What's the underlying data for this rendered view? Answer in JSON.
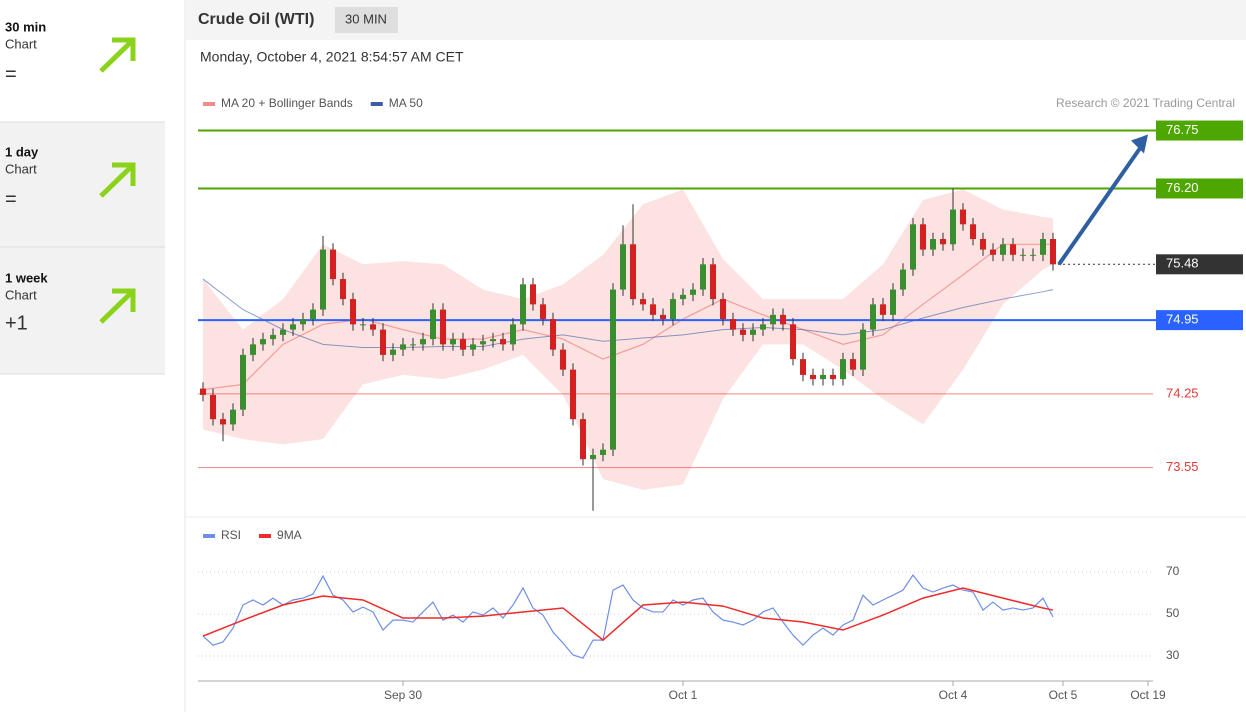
{
  "sidebar": [
    {
      "period": "30 min",
      "label": "Chart",
      "signal": "="
    },
    {
      "period": "1 day",
      "label": "Chart",
      "signal": "="
    },
    {
      "period": "1 week",
      "label": "Chart",
      "signal": "+1"
    }
  ],
  "header": {
    "title": "Crude Oil (WTI)",
    "interval": "30 MIN",
    "timestamp": "Monday, October 4, 2021 8:54:57 AM CET"
  },
  "chart_data": [
    {
      "type": "candlestick",
      "credit": "Research © 2021 Trading Central",
      "up_color": "#3b8e2f",
      "down_color": "#d32020",
      "xlim": [
        -0.5,
        95
      ],
      "ylim": [
        73.1,
        76.85
      ],
      "x": [
        0,
        1,
        2,
        3,
        4,
        5,
        6,
        7,
        8,
        9,
        10,
        11,
        12,
        13,
        14,
        15,
        16,
        17,
        18,
        19,
        20,
        21,
        22,
        23,
        24,
        25,
        26,
        27,
        28,
        29,
        30,
        31,
        32,
        33,
        34,
        35,
        36,
        37,
        38,
        39,
        40,
        41,
        42,
        43,
        44,
        45,
        46,
        47,
        48,
        49,
        50,
        51,
        52,
        53,
        54,
        55,
        56,
        57,
        58,
        59,
        60,
        61,
        62,
        63,
        64,
        65,
        66,
        67,
        68,
        69,
        70,
        71,
        72,
        73,
        74,
        75,
        76,
        77,
        78,
        79,
        80,
        81,
        82,
        83,
        84,
        85
      ],
      "open": [
        74.3,
        74.24,
        74.01,
        73.96,
        74.1,
        74.62,
        74.72,
        74.77,
        74.81,
        74.86,
        74.91,
        74.96,
        75.05,
        75.62,
        75.34,
        75.15,
        74.91,
        74.91,
        74.86,
        74.62,
        74.67,
        74.72,
        74.72,
        74.77,
        75.05,
        74.72,
        74.77,
        74.67,
        74.72,
        74.75,
        74.77,
        74.72,
        74.91,
        75.29,
        75.1,
        74.96,
        74.67,
        74.48,
        74.01,
        73.63,
        73.67,
        73.72,
        75.24,
        75.67,
        75.15,
        75.1,
        75.0,
        74.96,
        75.15,
        75.19,
        75.24,
        75.48,
        75.15,
        74.96,
        74.86,
        74.81,
        74.86,
        74.91,
        75.0,
        74.91,
        74.58,
        74.43,
        74.39,
        74.43,
        74.39,
        74.58,
        74.48,
        74.86,
        75.1,
        75.0,
        75.24,
        75.43,
        75.86,
        75.62,
        75.72,
        75.67,
        76.0,
        75.86,
        75.72,
        75.62,
        75.57,
        75.67,
        75.57,
        75.57,
        75.57,
        75.72
      ],
      "high": [
        74.36,
        74.3,
        74.07,
        74.16,
        74.68,
        74.78,
        74.83,
        74.87,
        74.92,
        74.97,
        75.02,
        75.11,
        75.75,
        75.68,
        75.4,
        75.21,
        74.97,
        74.97,
        74.92,
        74.73,
        74.78,
        74.78,
        74.83,
        75.11,
        75.11,
        74.83,
        74.83,
        74.78,
        74.81,
        74.83,
        74.83,
        74.97,
        75.35,
        75.35,
        75.16,
        75.02,
        74.73,
        74.54,
        74.07,
        73.73,
        73.78,
        75.3,
        75.85,
        76.05,
        75.21,
        75.16,
        75.06,
        75.21,
        75.25,
        75.3,
        75.54,
        75.54,
        75.21,
        75.02,
        74.92,
        74.92,
        74.97,
        75.06,
        75.06,
        74.97,
        74.64,
        74.49,
        74.49,
        74.49,
        74.64,
        74.64,
        74.92,
        75.16,
        75.16,
        75.3,
        75.49,
        75.92,
        75.92,
        75.78,
        75.78,
        76.2,
        76.06,
        75.92,
        75.78,
        75.68,
        75.73,
        75.73,
        75.63,
        75.63,
        75.78,
        75.78
      ],
      "low": [
        74.18,
        73.95,
        73.8,
        73.9,
        74.04,
        74.56,
        74.66,
        74.71,
        74.75,
        74.8,
        74.85,
        74.9,
        74.99,
        75.28,
        75.09,
        74.85,
        74.85,
        74.8,
        74.56,
        74.56,
        74.61,
        74.66,
        74.66,
        74.71,
        74.66,
        74.66,
        74.61,
        74.61,
        74.66,
        74.69,
        74.66,
        74.66,
        74.85,
        75.04,
        74.9,
        74.61,
        74.42,
        73.95,
        73.57,
        73.14,
        73.61,
        73.66,
        75.18,
        75.09,
        75.04,
        74.94,
        74.9,
        74.9,
        75.09,
        75.13,
        75.18,
        75.09,
        74.9,
        74.8,
        74.75,
        74.75,
        74.8,
        74.85,
        74.85,
        74.52,
        74.37,
        74.33,
        74.33,
        74.33,
        74.33,
        74.42,
        74.42,
        74.8,
        74.94,
        74.94,
        75.18,
        75.37,
        75.56,
        75.56,
        75.61,
        75.61,
        75.8,
        75.66,
        75.56,
        75.51,
        75.51,
        75.51,
        75.51,
        75.51,
        75.51,
        75.42
      ],
      "close": [
        74.24,
        74.01,
        73.96,
        74.1,
        74.62,
        74.72,
        74.77,
        74.81,
        74.86,
        74.91,
        74.96,
        75.05,
        75.62,
        75.34,
        75.15,
        74.91,
        74.91,
        74.86,
        74.62,
        74.67,
        74.72,
        74.72,
        74.77,
        75.05,
        74.72,
        74.77,
        74.67,
        74.72,
        74.75,
        74.77,
        74.72,
        74.91,
        75.29,
        75.1,
        74.96,
        74.67,
        74.48,
        74.01,
        73.63,
        73.67,
        73.72,
        75.24,
        75.67,
        75.15,
        75.1,
        75.0,
        74.96,
        75.15,
        75.19,
        75.24,
        75.48,
        75.15,
        74.96,
        74.86,
        74.81,
        74.86,
        74.91,
        75.0,
        74.91,
        74.58,
        74.43,
        74.39,
        74.43,
        74.39,
        74.58,
        74.48,
        74.86,
        75.1,
        75.0,
        75.24,
        75.43,
        75.86,
        75.62,
        75.72,
        75.67,
        76.0,
        75.86,
        75.72,
        75.62,
        75.57,
        75.67,
        75.57,
        75.57,
        75.57,
        75.72,
        75.48
      ],
      "series": [
        {
          "name": "MA 20 + Bollinger Bands",
          "color": "#f28b8b",
          "band_color": "#fde2e2",
          "x": [
            0,
            4,
            8,
            12,
            16,
            20,
            24,
            28,
            32,
            36,
            40,
            44,
            48,
            52,
            56,
            60,
            64,
            68,
            72,
            76,
            80,
            84,
            85
          ],
          "values": [
            74.29,
            74.34,
            74.72,
            74.91,
            74.96,
            74.86,
            74.77,
            74.77,
            74.86,
            74.77,
            74.58,
            74.72,
            74.96,
            75.15,
            75.0,
            74.86,
            74.72,
            74.81,
            75.1,
            75.38,
            75.67,
            75.67,
            75.67
          ],
          "upper": [
            75.34,
            74.86,
            75.15,
            75.67,
            75.48,
            75.51,
            75.48,
            75.24,
            75.15,
            75.29,
            75.57,
            76.05,
            76.19,
            75.53,
            75.15,
            75.15,
            75.15,
            75.48,
            76.09,
            76.19,
            76.0,
            75.93,
            75.92
          ],
          "lower": [
            73.91,
            73.82,
            73.77,
            73.82,
            74.34,
            74.43,
            74.39,
            74.48,
            74.62,
            74.24,
            73.44,
            73.34,
            73.39,
            74.2,
            74.72,
            74.72,
            74.48,
            74.2,
            73.96,
            74.48,
            75.1,
            75.43,
            75.48
          ]
        },
        {
          "name": "MA 50",
          "color": "#3d5ba9",
          "x": [
            0,
            4,
            8,
            12,
            16,
            20,
            24,
            28,
            32,
            36,
            40,
            44,
            48,
            52,
            56,
            60,
            64,
            68,
            72,
            76,
            80,
            84,
            85
          ],
          "values": [
            75.34,
            75.05,
            74.86,
            74.72,
            74.69,
            74.69,
            74.7,
            74.7,
            74.77,
            74.81,
            74.75,
            74.78,
            74.81,
            74.86,
            74.88,
            74.86,
            74.81,
            74.86,
            74.97,
            75.07,
            75.15,
            75.22,
            75.24
          ]
        }
      ],
      "levels": [
        {
          "value": 76.75,
          "label": "76.75",
          "color": "#4ea600",
          "boxed": true,
          "style": "solid"
        },
        {
          "value": 76.2,
          "label": "76.20",
          "color": "#4ea600",
          "boxed": true,
          "style": "solid"
        },
        {
          "value": 75.48,
          "label": "75.48",
          "color": "#333333",
          "boxed": true,
          "style": "dotted"
        },
        {
          "value": 74.95,
          "label": "74.95",
          "color": "#2962ff",
          "boxed": true,
          "style": "solid"
        },
        {
          "value": 74.25,
          "label": "74.25",
          "color": "#e53935",
          "boxed": false,
          "style": "thin"
        },
        {
          "value": 73.55,
          "label": "73.55",
          "color": "#e53935",
          "boxed": false,
          "style": "thin"
        }
      ]
    },
    {
      "type": "line",
      "xlim": [
        -0.5,
        95
      ],
      "ylim": [
        18.6,
        80.5
      ],
      "yticks": [
        30,
        50,
        70
      ],
      "grid": true,
      "xticks": [
        {
          "value": 20,
          "label": "Sep 30"
        },
        {
          "value": 48,
          "label": "Oct 1"
        },
        {
          "value": 75,
          "label": "Oct 4"
        },
        {
          "value": 86,
          "label": "Oct 5"
        },
        {
          "value": 94.5,
          "label": "Oct 19"
        }
      ],
      "series": [
        {
          "name": "RSI",
          "color": "#6f8fe6",
          "x": [
            0,
            1,
            2,
            3,
            4,
            5,
            6,
            7,
            8,
            9,
            10,
            11,
            12,
            13,
            14,
            15,
            16,
            17,
            18,
            19,
            20,
            21,
            22,
            23,
            24,
            25,
            26,
            27,
            28,
            29,
            30,
            31,
            32,
            33,
            34,
            35,
            36,
            37,
            38,
            39,
            40,
            41,
            42,
            43,
            44,
            45,
            46,
            47,
            48,
            49,
            50,
            51,
            52,
            53,
            54,
            55,
            56,
            57,
            58,
            59,
            60,
            61,
            62,
            63,
            64,
            65,
            66,
            67,
            68,
            69,
            70,
            71,
            72,
            73,
            74,
            75,
            76,
            77,
            78,
            79,
            80,
            81,
            82,
            83,
            84,
            85
          ],
          "values": [
            39.5,
            35.2,
            36.7,
            43.3,
            54.3,
            56.7,
            54.3,
            57.6,
            54.3,
            56.7,
            57.6,
            59.5,
            68.1,
            59.0,
            56.7,
            51.0,
            53.3,
            51.0,
            42.4,
            47.1,
            47.1,
            46.2,
            51.0,
            55.7,
            47.1,
            49.5,
            46.2,
            51.0,
            49.5,
            52.9,
            48.1,
            54.3,
            62.4,
            52.9,
            49.5,
            41.4,
            36.2,
            30.5,
            29.0,
            37.6,
            37.6,
            61.4,
            63.8,
            56.7,
            52.9,
            51.0,
            51.0,
            56.7,
            54.3,
            56.7,
            57.6,
            51.0,
            47.1,
            46.2,
            44.8,
            47.1,
            51.0,
            52.9,
            46.2,
            40.0,
            35.2,
            40.0,
            43.3,
            40.0,
            44.8,
            47.1,
            59.0,
            54.3,
            56.7,
            59.0,
            61.4,
            68.6,
            62.4,
            60.5,
            62.4,
            63.8,
            61.4,
            60.5,
            51.9,
            55.7,
            51.9,
            52.9,
            51.9,
            52.9,
            57.6,
            48.6
          ]
        },
        {
          "name": "9MA",
          "color": "#ee2a2a",
          "x": [
            0,
            4,
            8,
            12,
            16,
            20,
            24,
            28,
            32,
            36,
            40,
            44,
            48,
            52,
            56,
            60,
            64,
            68,
            72,
            76,
            80,
            84,
            85
          ],
          "values": [
            39.5,
            47.1,
            54.3,
            58.6,
            56.7,
            48.1,
            48.1,
            49.0,
            51.0,
            52.9,
            37.6,
            54.3,
            55.7,
            53.8,
            48.1,
            46.2,
            42.4,
            49.5,
            57.6,
            62.4,
            57.6,
            52.9,
            51.9
          ]
        }
      ]
    }
  ]
}
